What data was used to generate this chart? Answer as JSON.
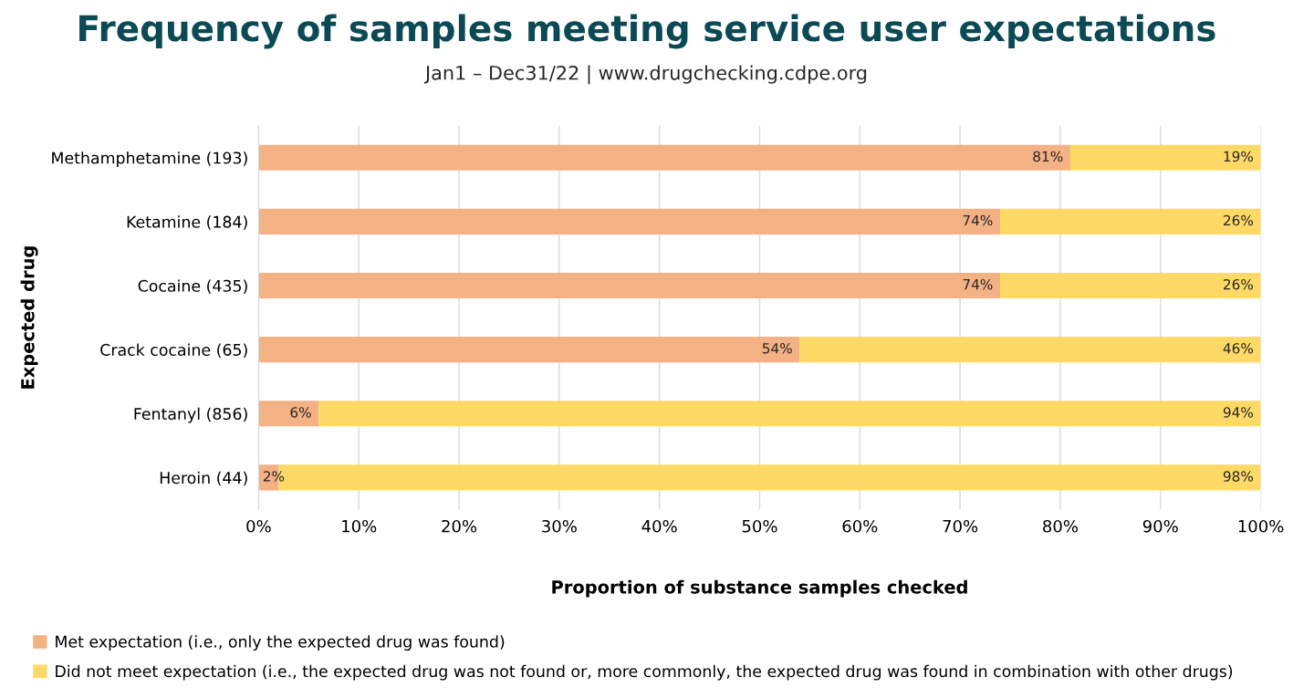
{
  "chart_data": {
    "type": "bar",
    "orientation": "horizontal",
    "stacked": true,
    "title": "Frequency of samples meeting service user expectations",
    "subtitle": "Jan1 – Dec31/22 | www.drugchecking.cdpe.org",
    "xlabel": "Proportion of substance samples checked",
    "ylabel": "Expected drug",
    "categories": [
      "Methamphetamine (193)",
      "Ketamine (184)",
      "Cocaine (435)",
      "Crack cocaine (65)",
      "Fentanyl (856)",
      "Heroin (44)"
    ],
    "series": [
      {
        "name": "Met expectation (i.e., only the expected drug was found)",
        "color": "#f4b183",
        "values": [
          81,
          74,
          74,
          54,
          6,
          2
        ],
        "value_labels": [
          "81%",
          "74%",
          "74%",
          "54%",
          "6%",
          "2%"
        ]
      },
      {
        "name": "Did not meet expectation (i.e., the expected drug was not found or, more commonly, the expected drug was found in combination with other drugs)",
        "color": "#ffd966",
        "values": [
          19,
          26,
          26,
          46,
          94,
          98
        ],
        "value_labels": [
          "19%",
          "26%",
          "26%",
          "46%",
          "94%",
          "98%"
        ]
      }
    ],
    "xlim": [
      0,
      100
    ],
    "xticks": [
      {
        "value": 0,
        "label": "0%"
      },
      {
        "value": 10,
        "label": "10%"
      },
      {
        "value": 20,
        "label": "20%"
      },
      {
        "value": 30,
        "label": "30%"
      },
      {
        "value": 40,
        "label": "40%"
      },
      {
        "value": 50,
        "label": "50%"
      },
      {
        "value": 60,
        "label": "60%"
      },
      {
        "value": 70,
        "label": "70%"
      },
      {
        "value": 80,
        "label": "80%"
      },
      {
        "value": 90,
        "label": "90%"
      },
      {
        "value": 100,
        "label": "100%"
      }
    ],
    "grid": "x",
    "legend": "bottom left"
  }
}
